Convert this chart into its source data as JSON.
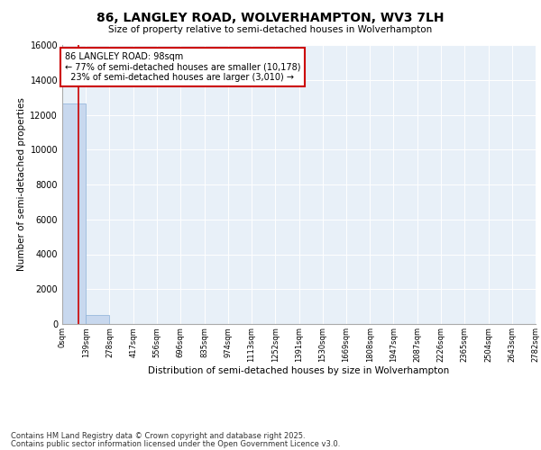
{
  "title": "86, LANGLEY ROAD, WOLVERHAMPTON, WV3 7LH",
  "subtitle": "Size of property relative to semi-detached houses in Wolverhampton",
  "xlabel": "Distribution of semi-detached houses by size in Wolverhampton",
  "ylabel": "Number of semi-detached properties",
  "property_label": "86 LANGLEY ROAD: 98sqm",
  "pct_smaller": 77,
  "pct_larger": 23,
  "n_smaller": 10178,
  "n_larger": 3010,
  "bin_edges": [
    0,
    139,
    278,
    417,
    556,
    696,
    835,
    974,
    1113,
    1252,
    1391,
    1530,
    1669,
    1808,
    1947,
    2087,
    2226,
    2365,
    2504,
    2643,
    2782
  ],
  "bin_labels": [
    "0sqm",
    "139sqm",
    "278sqm",
    "417sqm",
    "556sqm",
    "696sqm",
    "835sqm",
    "974sqm",
    "1113sqm",
    "1252sqm",
    "1391sqm",
    "1530sqm",
    "1669sqm",
    "1808sqm",
    "1947sqm",
    "2087sqm",
    "2226sqm",
    "2365sqm",
    "2504sqm",
    "2643sqm",
    "2782sqm"
  ],
  "bar_heights": [
    12650,
    520,
    18,
    5,
    2,
    1,
    1,
    0,
    0,
    0,
    0,
    0,
    0,
    0,
    0,
    0,
    0,
    0,
    0,
    0
  ],
  "bar_color": "#c8d8ee",
  "bar_edge_color": "#8ab0d8",
  "vline_color": "#cc0000",
  "vline_x": 98,
  "ylim": [
    0,
    16000
  ],
  "yticks": [
    0,
    2000,
    4000,
    6000,
    8000,
    10000,
    12000,
    14000,
    16000
  ],
  "axes_background": "#e8f0f8",
  "grid_color": "#ffffff",
  "annotation_box_edge": "#cc0000",
  "footer_line1": "Contains HM Land Registry data © Crown copyright and database right 2025.",
  "footer_line2": "Contains public sector information licensed under the Open Government Licence v3.0."
}
